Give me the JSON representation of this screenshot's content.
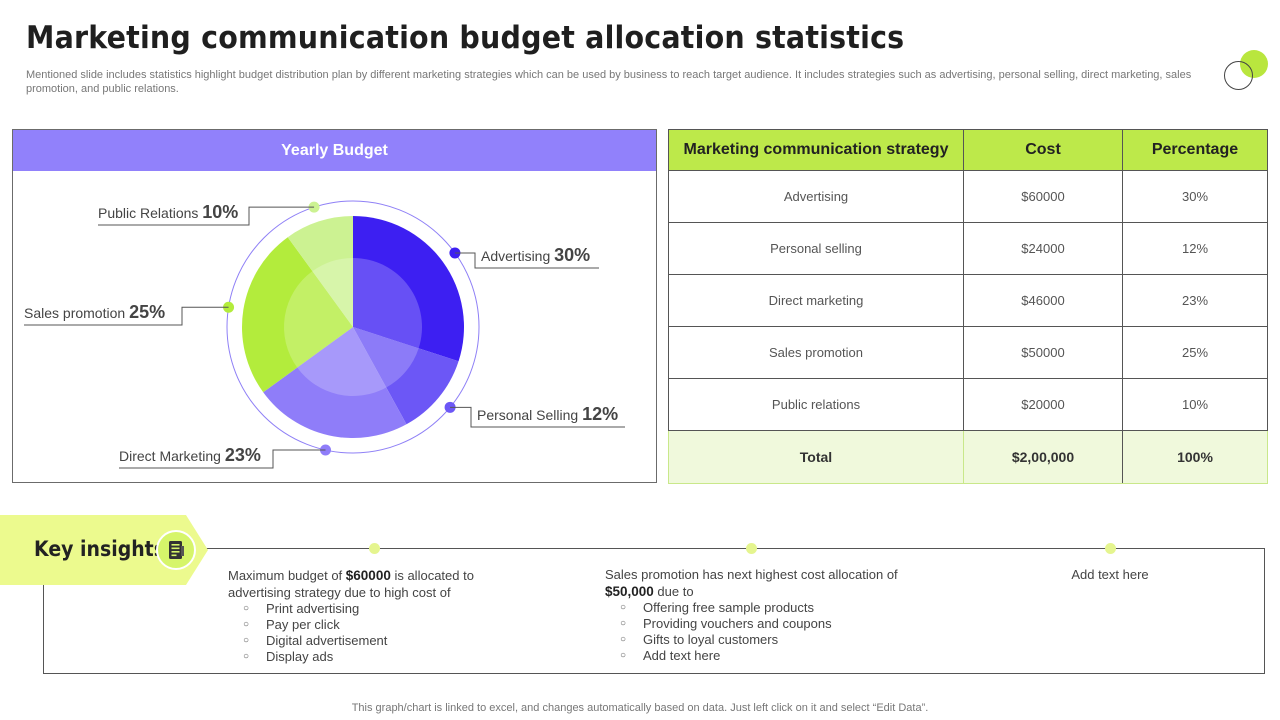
{
  "page": {
    "title": "Marketing communication budget allocation statistics",
    "subtitle": "Mentioned slide includes statistics highlight budget distribution plan by different marketing strategies which can be used by business to reach target audience. It includes strategies such as advertising, personal selling, direct marketing, sales promotion, and public relations.",
    "footnote": "This graph/chart is linked to excel,  and changes automatically based on data. Just left click on it and select “Edit Data”."
  },
  "chart_data": {
    "type": "pie",
    "title": "Yearly Budget",
    "categories": [
      "Advertising",
      "Personal Selling",
      "Direct Marketing",
      "Sales promotion",
      "Public Relations"
    ],
    "values": [
      30,
      12,
      23,
      25,
      10
    ],
    "value_labels": [
      "30%",
      "12%",
      "23%",
      "25%",
      "10%"
    ],
    "colors": [
      "#3d1ff2",
      "#6c57f6",
      "#8f7df9",
      "#b3ec3c",
      "#ccf292"
    ],
    "legend": "callouts"
  },
  "table": {
    "headers": [
      "Marketing communication strategy",
      "Cost",
      "Percentage"
    ],
    "rows": [
      [
        "Advertising",
        "$60000",
        "30%"
      ],
      [
        "Personal selling",
        "$24000",
        "12%"
      ],
      [
        "Direct marketing",
        "$46000",
        "23%"
      ],
      [
        "Sales promotion",
        "$50000",
        "25%"
      ],
      [
        "Public relations",
        "$20000",
        "10%"
      ]
    ],
    "total": [
      "Total",
      "$2,00,000",
      "100%"
    ]
  },
  "insights": {
    "label": "Key insights",
    "icon": "notepad-icon",
    "col1": {
      "pre": "Maximum budget of ",
      "bold": "$60000",
      "post": " is allocated to advertising  strategy due to high cost of",
      "items": [
        "Print advertising",
        "Pay per click",
        "Digital advertisement",
        "Display ads"
      ]
    },
    "col2": {
      "pre": "Sales promotion has next highest cost allocation of ",
      "bold": "$50,000",
      "post": " due to",
      "items": [
        "Offering free sample products",
        "Providing vouchers and coupons",
        "Gifts to loyal customers",
        "Add text here"
      ]
    },
    "col3": {
      "text": "Add text here"
    }
  },
  "colors": {
    "accent_purple": "#9181fb",
    "accent_green": "#bde94a",
    "total_row": "#f0f9dc"
  }
}
